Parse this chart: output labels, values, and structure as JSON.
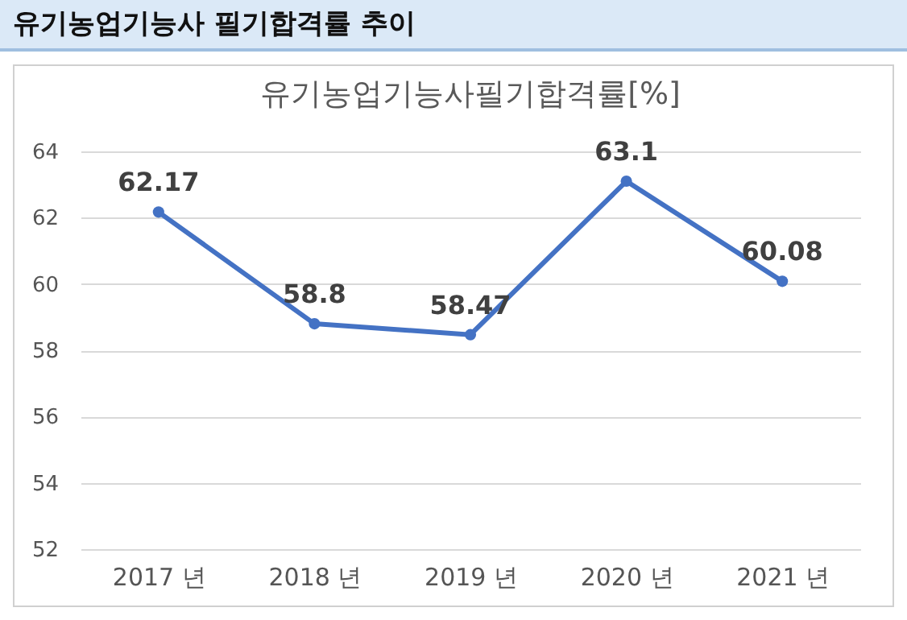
{
  "chart_data": {
    "type": "line",
    "title": "유기농업기능사 필기합격률 추이",
    "subtitle": "유기농업기능사필기합격률[%]",
    "categories": [
      "2017 년",
      "2018 년",
      "2019 년",
      "2020 년",
      "2021 년"
    ],
    "series": [
      {
        "color": "#4472c4",
        "values": [
          62.17,
          58.8,
          58.47,
          63.1,
          60.08
        ]
      }
    ],
    "ylim": [
      52,
      64
    ],
    "yticks": [
      52,
      54,
      56,
      58,
      60,
      62,
      64
    ],
    "grid": "y",
    "data_labels": true,
    "marker": "circle",
    "line_style": "solid"
  }
}
